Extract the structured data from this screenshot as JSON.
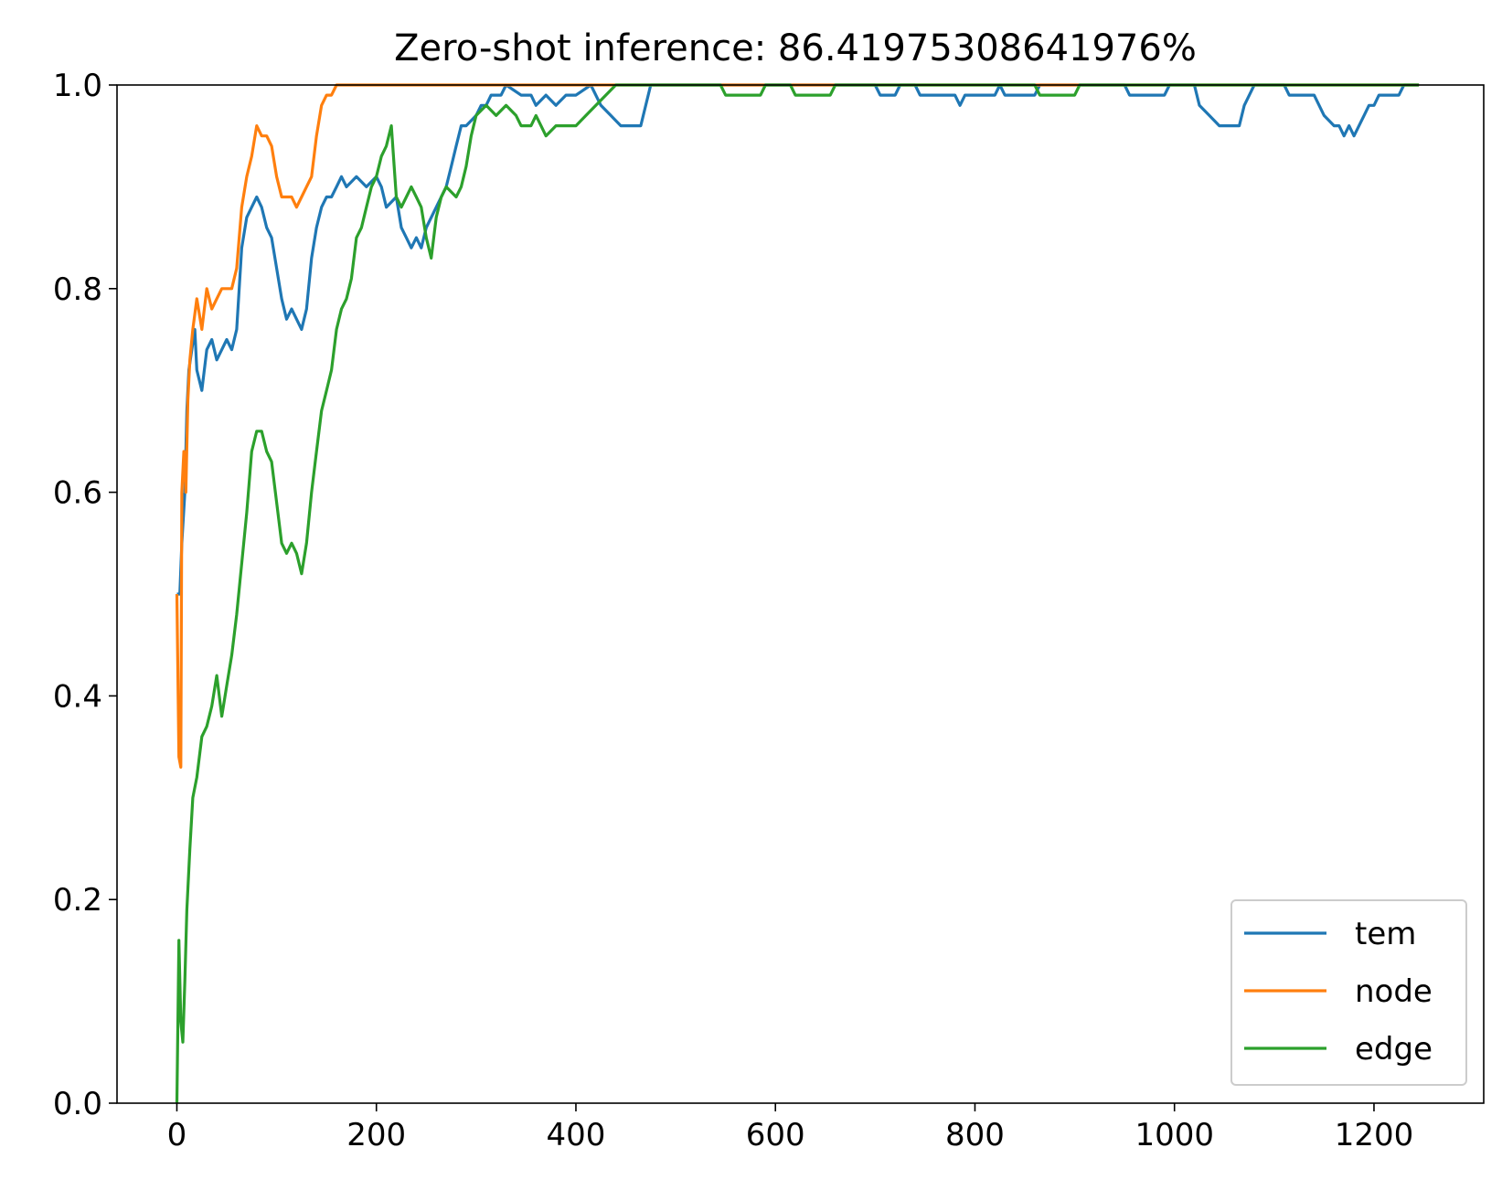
{
  "chart_data": {
    "type": "line",
    "title": "Zero-shot inference: 86.41975308641976%",
    "xlabel": "",
    "ylabel": "",
    "xlim": [
      -60,
      1310
    ],
    "ylim": [
      0.0,
      1.0
    ],
    "x_ticks": [
      0,
      200,
      400,
      600,
      800,
      1000,
      1200
    ],
    "x_tick_labels": [
      "0",
      "200",
      "400",
      "600",
      "800",
      "1000",
      "1200"
    ],
    "y_ticks": [
      0.0,
      0.2,
      0.4,
      0.6,
      0.8,
      1.0
    ],
    "y_tick_labels": [
      "0.0",
      "0.2",
      "0.4",
      "0.6",
      "0.8",
      "1.0"
    ],
    "grid": false,
    "legend_position": "lower-right",
    "series": [
      {
        "name": "tem",
        "color": "#1f77b4",
        "points": [
          [
            0,
            0.5
          ],
          [
            3,
            0.5
          ],
          [
            5,
            0.55
          ],
          [
            8,
            0.6
          ],
          [
            10,
            0.68
          ],
          [
            12,
            0.72
          ],
          [
            15,
            0.74
          ],
          [
            18,
            0.76
          ],
          [
            20,
            0.72
          ],
          [
            25,
            0.7
          ],
          [
            30,
            0.74
          ],
          [
            35,
            0.75
          ],
          [
            40,
            0.73
          ],
          [
            45,
            0.74
          ],
          [
            50,
            0.75
          ],
          [
            55,
            0.74
          ],
          [
            60,
            0.76
          ],
          [
            65,
            0.84
          ],
          [
            70,
            0.87
          ],
          [
            75,
            0.88
          ],
          [
            80,
            0.89
          ],
          [
            85,
            0.88
          ],
          [
            90,
            0.86
          ],
          [
            95,
            0.85
          ],
          [
            100,
            0.82
          ],
          [
            105,
            0.79
          ],
          [
            110,
            0.77
          ],
          [
            115,
            0.78
          ],
          [
            120,
            0.77
          ],
          [
            125,
            0.76
          ],
          [
            130,
            0.78
          ],
          [
            135,
            0.83
          ],
          [
            140,
            0.86
          ],
          [
            145,
            0.88
          ],
          [
            150,
            0.89
          ],
          [
            155,
            0.89
          ],
          [
            160,
            0.9
          ],
          [
            165,
            0.91
          ],
          [
            170,
            0.9
          ],
          [
            180,
            0.91
          ],
          [
            190,
            0.9
          ],
          [
            200,
            0.91
          ],
          [
            205,
            0.9
          ],
          [
            210,
            0.88
          ],
          [
            220,
            0.89
          ],
          [
            225,
            0.86
          ],
          [
            230,
            0.85
          ],
          [
            235,
            0.84
          ],
          [
            240,
            0.85
          ],
          [
            245,
            0.84
          ],
          [
            250,
            0.86
          ],
          [
            260,
            0.88
          ],
          [
            265,
            0.89
          ],
          [
            270,
            0.9
          ],
          [
            275,
            0.92
          ],
          [
            280,
            0.94
          ],
          [
            285,
            0.96
          ],
          [
            290,
            0.96
          ],
          [
            300,
            0.97
          ],
          [
            305,
            0.98
          ],
          [
            310,
            0.98
          ],
          [
            315,
            0.99
          ],
          [
            325,
            0.99
          ],
          [
            330,
            1.0
          ],
          [
            345,
            0.99
          ],
          [
            355,
            0.99
          ],
          [
            360,
            0.98
          ],
          [
            370,
            0.99
          ],
          [
            380,
            0.98
          ],
          [
            390,
            0.99
          ],
          [
            400,
            0.99
          ],
          [
            415,
            1.0
          ],
          [
            425,
            0.98
          ],
          [
            435,
            0.97
          ],
          [
            445,
            0.96
          ],
          [
            465,
            0.96
          ],
          [
            475,
            1.0
          ],
          [
            700,
            1.0
          ],
          [
            705,
            0.99
          ],
          [
            720,
            0.99
          ],
          [
            725,
            1.0
          ],
          [
            740,
            1.0
          ],
          [
            745,
            0.99
          ],
          [
            780,
            0.99
          ],
          [
            785,
            0.98
          ],
          [
            790,
            0.99
          ],
          [
            820,
            0.99
          ],
          [
            825,
            1.0
          ],
          [
            830,
            0.99
          ],
          [
            860,
            0.99
          ],
          [
            865,
            1.0
          ],
          [
            950,
            1.0
          ],
          [
            955,
            0.99
          ],
          [
            990,
            0.99
          ],
          [
            995,
            1.0
          ],
          [
            1020,
            1.0
          ],
          [
            1025,
            0.98
          ],
          [
            1035,
            0.97
          ],
          [
            1045,
            0.96
          ],
          [
            1065,
            0.96
          ],
          [
            1070,
            0.98
          ],
          [
            1075,
            0.99
          ],
          [
            1080,
            1.0
          ],
          [
            1110,
            1.0
          ],
          [
            1115,
            0.99
          ],
          [
            1140,
            0.99
          ],
          [
            1150,
            0.97
          ],
          [
            1160,
            0.96
          ],
          [
            1165,
            0.96
          ],
          [
            1170,
            0.95
          ],
          [
            1175,
            0.96
          ],
          [
            1180,
            0.95
          ],
          [
            1185,
            0.96
          ],
          [
            1190,
            0.97
          ],
          [
            1195,
            0.98
          ],
          [
            1200,
            0.98
          ],
          [
            1205,
            0.99
          ],
          [
            1225,
            0.99
          ],
          [
            1230,
            1.0
          ],
          [
            1245,
            1.0
          ]
        ]
      },
      {
        "name": "node",
        "color": "#ff7f0e",
        "points": [
          [
            0,
            0.5
          ],
          [
            2,
            0.34
          ],
          [
            4,
            0.33
          ],
          [
            5,
            0.6
          ],
          [
            7,
            0.64
          ],
          [
            9,
            0.6
          ],
          [
            11,
            0.69
          ],
          [
            13,
            0.73
          ],
          [
            16,
            0.76
          ],
          [
            20,
            0.79
          ],
          [
            25,
            0.76
          ],
          [
            30,
            0.8
          ],
          [
            35,
            0.78
          ],
          [
            40,
            0.79
          ],
          [
            45,
            0.8
          ],
          [
            50,
            0.8
          ],
          [
            55,
            0.8
          ],
          [
            60,
            0.82
          ],
          [
            65,
            0.88
          ],
          [
            70,
            0.91
          ],
          [
            75,
            0.93
          ],
          [
            80,
            0.96
          ],
          [
            85,
            0.95
          ],
          [
            90,
            0.95
          ],
          [
            95,
            0.94
          ],
          [
            100,
            0.91
          ],
          [
            105,
            0.89
          ],
          [
            110,
            0.89
          ],
          [
            115,
            0.89
          ],
          [
            120,
            0.88
          ],
          [
            125,
            0.89
          ],
          [
            130,
            0.9
          ],
          [
            135,
            0.91
          ],
          [
            140,
            0.95
          ],
          [
            145,
            0.98
          ],
          [
            150,
            0.99
          ],
          [
            155,
            0.99
          ],
          [
            160,
            1.0
          ],
          [
            1245,
            1.0
          ]
        ]
      },
      {
        "name": "edge",
        "color": "#2ca02c",
        "points": [
          [
            0,
            0.0
          ],
          [
            2,
            0.16
          ],
          [
            4,
            0.08
          ],
          [
            6,
            0.06
          ],
          [
            8,
            0.12
          ],
          [
            10,
            0.19
          ],
          [
            13,
            0.25
          ],
          [
            16,
            0.3
          ],
          [
            20,
            0.32
          ],
          [
            25,
            0.36
          ],
          [
            30,
            0.37
          ],
          [
            35,
            0.39
          ],
          [
            40,
            0.42
          ],
          [
            45,
            0.38
          ],
          [
            50,
            0.41
          ],
          [
            55,
            0.44
          ],
          [
            60,
            0.48
          ],
          [
            65,
            0.53
          ],
          [
            70,
            0.58
          ],
          [
            75,
            0.64
          ],
          [
            80,
            0.66
          ],
          [
            85,
            0.66
          ],
          [
            90,
            0.64
          ],
          [
            95,
            0.63
          ],
          [
            100,
            0.59
          ],
          [
            105,
            0.55
          ],
          [
            110,
            0.54
          ],
          [
            115,
            0.55
          ],
          [
            120,
            0.54
          ],
          [
            125,
            0.52
          ],
          [
            130,
            0.55
          ],
          [
            135,
            0.6
          ],
          [
            140,
            0.64
          ],
          [
            145,
            0.68
          ],
          [
            150,
            0.7
          ],
          [
            155,
            0.72
          ],
          [
            160,
            0.76
          ],
          [
            165,
            0.78
          ],
          [
            170,
            0.79
          ],
          [
            175,
            0.81
          ],
          [
            180,
            0.85
          ],
          [
            185,
            0.86
          ],
          [
            190,
            0.88
          ],
          [
            195,
            0.9
          ],
          [
            200,
            0.91
          ],
          [
            205,
            0.93
          ],
          [
            210,
            0.94
          ],
          [
            215,
            0.96
          ],
          [
            220,
            0.89
          ],
          [
            225,
            0.88
          ],
          [
            230,
            0.89
          ],
          [
            235,
            0.9
          ],
          [
            240,
            0.89
          ],
          [
            245,
            0.88
          ],
          [
            250,
            0.85
          ],
          [
            255,
            0.83
          ],
          [
            260,
            0.87
          ],
          [
            265,
            0.89
          ],
          [
            270,
            0.9
          ],
          [
            280,
            0.89
          ],
          [
            285,
            0.9
          ],
          [
            290,
            0.92
          ],
          [
            295,
            0.95
          ],
          [
            300,
            0.97
          ],
          [
            310,
            0.98
          ],
          [
            320,
            0.97
          ],
          [
            330,
            0.98
          ],
          [
            340,
            0.97
          ],
          [
            345,
            0.96
          ],
          [
            355,
            0.96
          ],
          [
            360,
            0.97
          ],
          [
            365,
            0.96
          ],
          [
            370,
            0.95
          ],
          [
            380,
            0.96
          ],
          [
            400,
            0.96
          ],
          [
            410,
            0.97
          ],
          [
            420,
            0.98
          ],
          [
            430,
            0.99
          ],
          [
            440,
            1.0
          ],
          [
            545,
            1.0
          ],
          [
            550,
            0.99
          ],
          [
            585,
            0.99
          ],
          [
            590,
            1.0
          ],
          [
            615,
            1.0
          ],
          [
            620,
            0.99
          ],
          [
            655,
            0.99
          ],
          [
            660,
            1.0
          ],
          [
            860,
            1.0
          ],
          [
            865,
            0.99
          ],
          [
            900,
            0.99
          ],
          [
            905,
            1.0
          ],
          [
            1245,
            1.0
          ]
        ]
      }
    ]
  }
}
